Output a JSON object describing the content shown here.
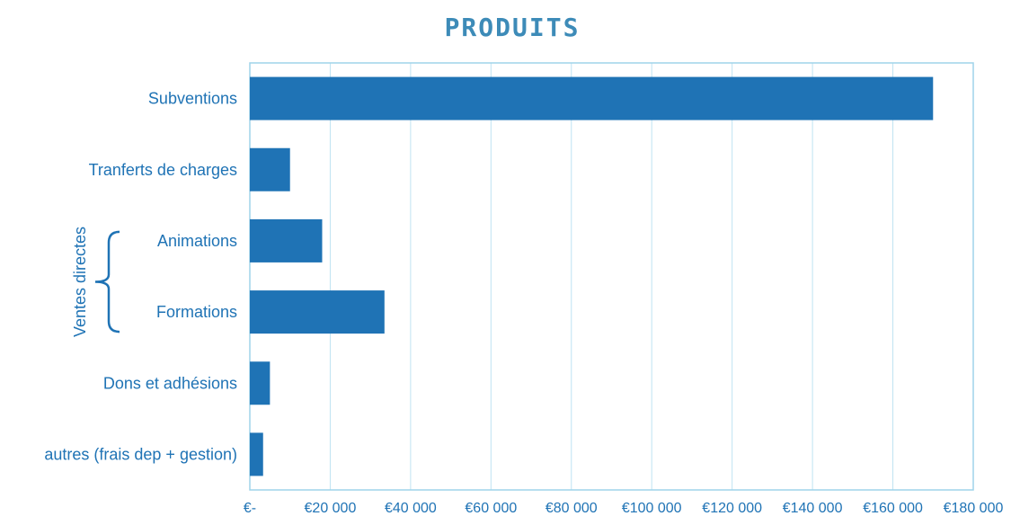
{
  "chart_data": {
    "type": "bar",
    "orientation": "horizontal",
    "title": "PRODUITS",
    "categories": [
      "Subventions",
      "Tranferts de charges",
      "Animations",
      "Formations",
      "Dons et adhésions",
      "autres (frais dep + gestion)"
    ],
    "values": [
      170000,
      10000,
      18000,
      33500,
      5000,
      3300
    ],
    "xlim": [
      0,
      180000
    ],
    "x_ticks": [
      0,
      20000,
      40000,
      60000,
      80000,
      100000,
      120000,
      140000,
      160000,
      180000
    ],
    "x_tick_labels": [
      "€-",
      "€20 000",
      "€40 000",
      "€60 000",
      "€80 000",
      "€100 000",
      "€120 000",
      "€140 000",
      "€160 000",
      "€180 000"
    ],
    "group_annotation": {
      "label": "Ventes directes",
      "categories": [
        "Animations",
        "Formations"
      ]
    },
    "grid": "vertical",
    "bar_color": "#1f73b5",
    "text_color": "#1f73b5",
    "grid_color": "#bfe3f2",
    "title_color": "#3d8bb8"
  }
}
